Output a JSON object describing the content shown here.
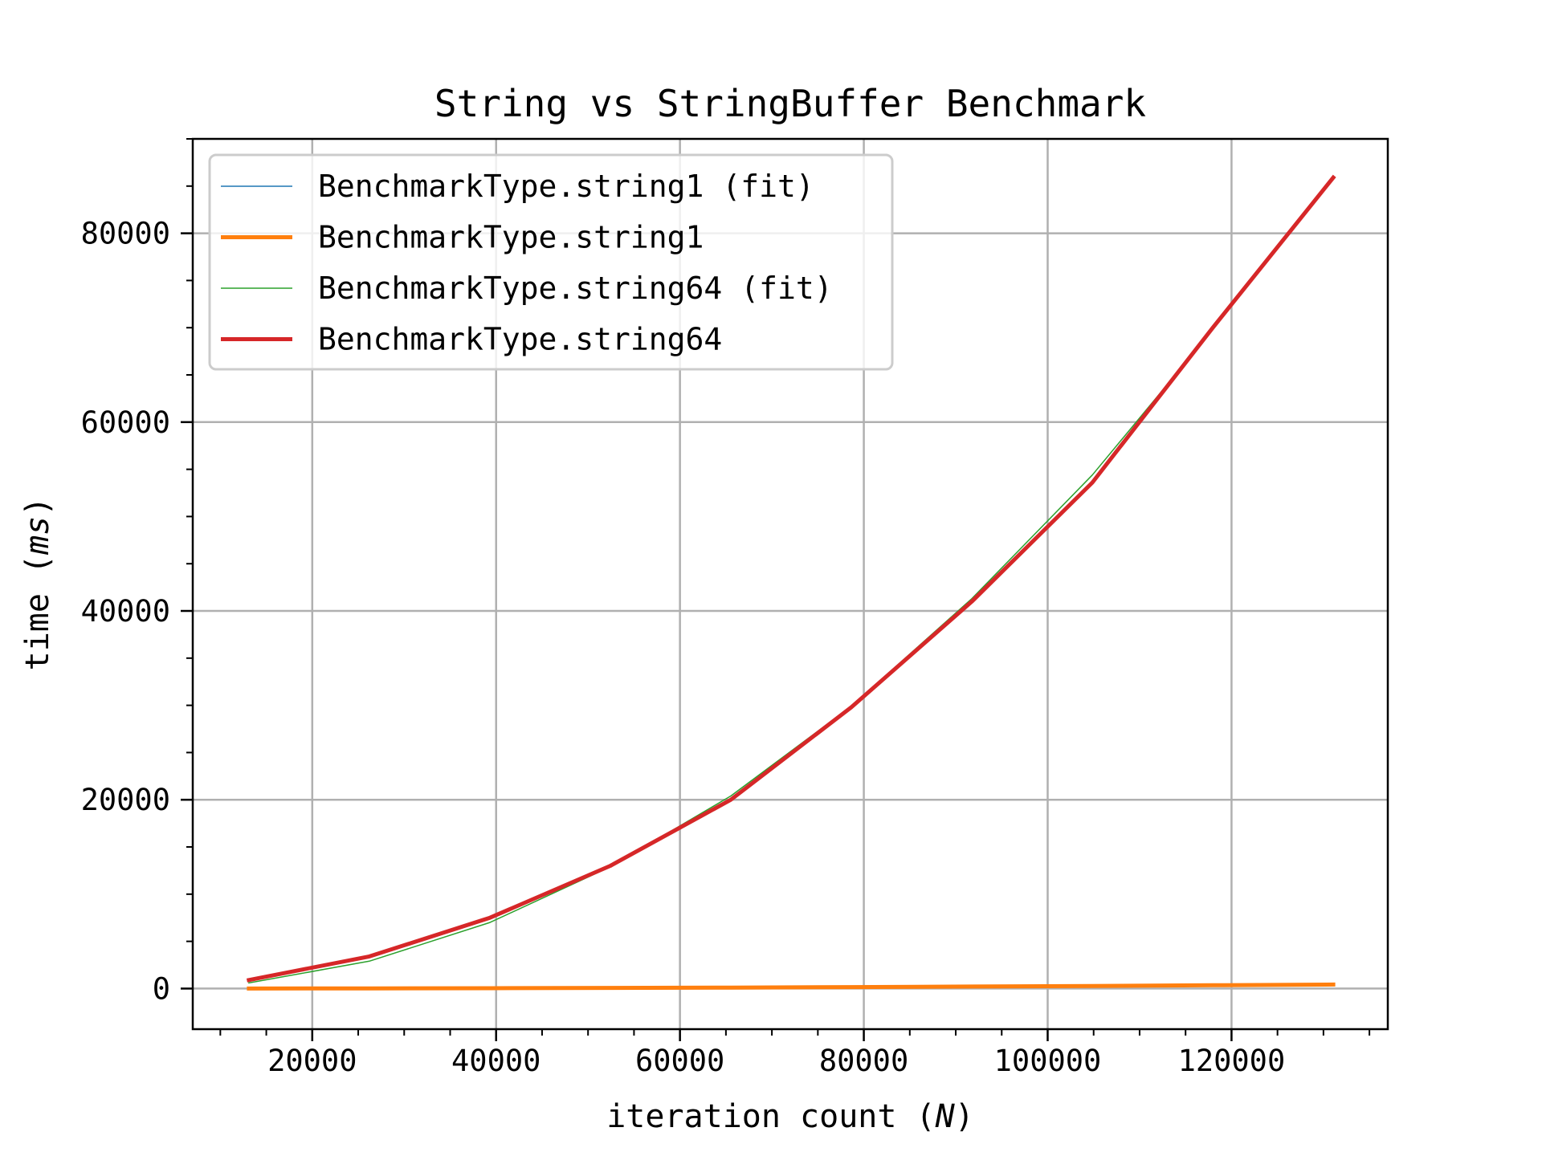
{
  "figure": {
    "title": "String vs StringBuffer Benchmark",
    "xlabel_text": "iteration count (",
    "xlabel_italic": "N",
    "xlabel_close": ")",
    "ylabel_text": "time (",
    "ylabel_italic": "ms",
    "ylabel_close": ")"
  },
  "colors": {
    "string1_fit": "#1f77b4",
    "string1": "#ff7f0e",
    "string64_fit": "#2ca02c",
    "string64": "#d62728",
    "grid": "#b0b0b0",
    "legend_border": "#cccccc"
  },
  "legend": {
    "items": [
      {
        "label": "BenchmarkType.string1 (fit)",
        "color": "#1f77b4",
        "width": 1.5
      },
      {
        "label": "BenchmarkType.string1",
        "color": "#ff7f0e",
        "width": 5
      },
      {
        "label": "BenchmarkType.string64 (fit)",
        "color": "#2ca02c",
        "width": 1.5
      },
      {
        "label": "BenchmarkType.string64",
        "color": "#d62728",
        "width": 5
      }
    ]
  },
  "chart_data": {
    "type": "line",
    "title": "String vs StringBuffer Benchmark",
    "xlabel": "iteration count (N)",
    "ylabel": "time (ms)",
    "x": [
      13107,
      26214,
      39322,
      52429,
      65536,
      78643,
      91750,
      104858,
      117965,
      131072
    ],
    "xlim": [
      7000,
      137000
    ],
    "ylim": [
      -4300,
      90000
    ],
    "xticks": [
      20000,
      40000,
      60000,
      80000,
      100000,
      120000
    ],
    "yticks": [
      0,
      20000,
      40000,
      60000,
      80000
    ],
    "x_minor_step": 5000,
    "y_minor_step": 5000,
    "grid": true,
    "legend_position": "upper left",
    "series": [
      {
        "name": "BenchmarkType.string1 (fit)",
        "color": "#1f77b4",
        "linewidth": 1.5,
        "values": [
          4,
          17,
          39,
          69,
          108,
          155,
          211,
          276,
          349,
          430
        ]
      },
      {
        "name": "BenchmarkType.string1",
        "color": "#ff7f0e",
        "linewidth": 5,
        "values": [
          4,
          17,
          39,
          69,
          108,
          155,
          211,
          276,
          349,
          430
        ]
      },
      {
        "name": "BenchmarkType.string64 (fit)",
        "color": "#2ca02c",
        "linewidth": 1.5,
        "values": [
          600,
          2900,
          7000,
          12900,
          20400,
          29900,
          41300,
          54400,
          69800,
          85900
        ]
      },
      {
        "name": "BenchmarkType.string64",
        "color": "#d62728",
        "linewidth": 5,
        "values": [
          900,
          3400,
          7500,
          13000,
          20000,
          29800,
          41000,
          53600,
          70000,
          85900
        ]
      }
    ]
  }
}
